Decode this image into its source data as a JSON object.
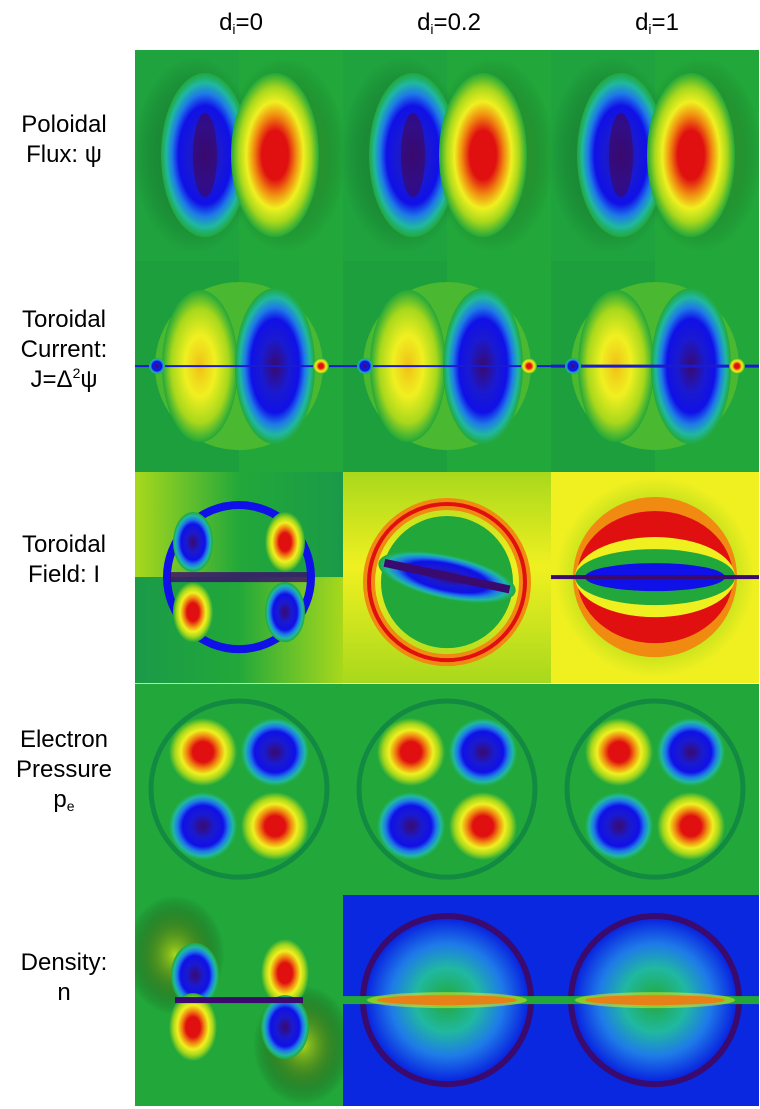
{
  "columns": [
    {
      "base": "d",
      "sub": "i",
      "rest": "=0"
    },
    {
      "base": "d",
      "sub": "i",
      "rest": "=0.2"
    },
    {
      "base": "d",
      "sub": "i",
      "rest": "=1"
    }
  ],
  "rows": [
    {
      "line1": "Poloidal",
      "line2": "Flux:  ψ"
    },
    {
      "line1": "Toroidal",
      "line2": "Current:",
      "line3_pre": "J=Δ",
      "line3_sup": "2",
      "line3_post": "ψ"
    },
    {
      "line1": "Toroidal",
      "line2": "Field:  I"
    },
    {
      "line1": "Electron",
      "line2": "Pressure",
      "line3_pre": "p",
      "line3_sub": "e"
    },
    {
      "line1": "Density:",
      "line2": "n"
    }
  ],
  "colors": {
    "background_green": "#22a83a",
    "dark_green": "#128a42",
    "yellow_green": "#a8d81c",
    "yellow": "#f0f020",
    "orange": "#f08a10",
    "red": "#e01010",
    "blue": "#1010e8",
    "dark_purple": "#3a0a6e",
    "panel_blue": "#0a28e0"
  }
}
